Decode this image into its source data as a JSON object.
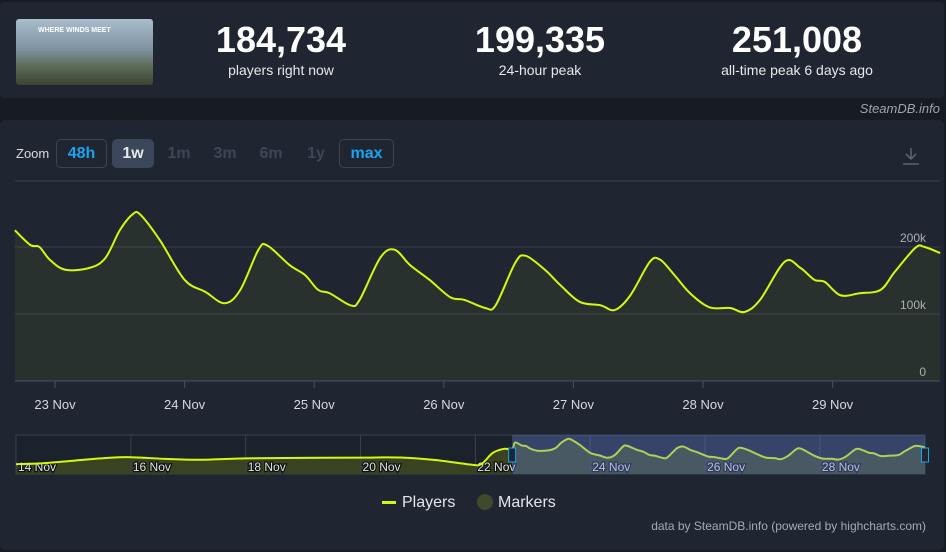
{
  "game": {
    "thumbnail_text": "WHERE WINDS MEET"
  },
  "stats": [
    {
      "value": "184,734",
      "label": "players right now"
    },
    {
      "value": "199,335",
      "label": "24-hour peak"
    },
    {
      "value": "251,008",
      "label": "all-time peak 6 days ago"
    }
  ],
  "brand": "SteamDB.info",
  "zoom": {
    "label": "Zoom",
    "buttons": [
      "48h",
      "1w",
      "1m",
      "3m",
      "6m",
      "1y",
      "max"
    ],
    "active": "1w"
  },
  "legend": {
    "players": "Players",
    "markers": "Markers"
  },
  "credit": "data by SteamDB.info (powered by highcharts.com)",
  "colors": {
    "line": "#d4f90e",
    "accent": "#1aa3f0",
    "marker": "#3f4a2a"
  },
  "chart_data": {
    "type": "line",
    "title": "",
    "xlabel": "",
    "ylabel": "Players",
    "x_unit": "day of November",
    "ylim": [
      0,
      250000
    ],
    "yticks": [
      {
        "v": 0,
        "label": "0"
      },
      {
        "v": 100000,
        "label": "100k"
      },
      {
        "v": 200000,
        "label": "200k"
      }
    ],
    "xticks": [
      {
        "v": 23,
        "label": "23 Nov"
      },
      {
        "v": 24,
        "label": "24 Nov"
      },
      {
        "v": 25,
        "label": "25 Nov"
      },
      {
        "v": 26,
        "label": "26 Nov"
      },
      {
        "v": 27,
        "label": "27 Nov"
      },
      {
        "v": 28,
        "label": "28 Nov"
      },
      {
        "v": 29,
        "label": "29 Nov"
      }
    ],
    "xlim": [
      22.69,
      29.83
    ],
    "series": [
      {
        "name": "Players",
        "points": [
          [
            22.69,
            225
          ],
          [
            22.81,
            203
          ],
          [
            22.88,
            200
          ],
          [
            22.96,
            181
          ],
          [
            23.08,
            166
          ],
          [
            23.27,
            169
          ],
          [
            23.39,
            184
          ],
          [
            23.5,
            225
          ],
          [
            23.6,
            249
          ],
          [
            23.66,
            248
          ],
          [
            23.81,
            210
          ],
          [
            24.0,
            151
          ],
          [
            24.16,
            133
          ],
          [
            24.31,
            116
          ],
          [
            24.43,
            136
          ],
          [
            24.57,
            196
          ],
          [
            24.64,
            202
          ],
          [
            24.81,
            173
          ],
          [
            24.93,
            158
          ],
          [
            25.03,
            136
          ],
          [
            25.12,
            131
          ],
          [
            25.28,
            113
          ],
          [
            25.35,
            121
          ],
          [
            25.51,
            184
          ],
          [
            25.62,
            196
          ],
          [
            25.74,
            173
          ],
          [
            25.89,
            151
          ],
          [
            26.05,
            125
          ],
          [
            26.16,
            121
          ],
          [
            26.32,
            109
          ],
          [
            26.4,
            113
          ],
          [
            26.55,
            176
          ],
          [
            26.63,
            187
          ],
          [
            26.78,
            166
          ],
          [
            26.9,
            143
          ],
          [
            27.05,
            118
          ],
          [
            27.21,
            113
          ],
          [
            27.32,
            106
          ],
          [
            27.44,
            128
          ],
          [
            27.59,
            178
          ],
          [
            27.67,
            181
          ],
          [
            27.78,
            158
          ],
          [
            27.9,
            131
          ],
          [
            28.05,
            110
          ],
          [
            28.21,
            109
          ],
          [
            28.32,
            103
          ],
          [
            28.44,
            121
          ],
          [
            28.63,
            178
          ],
          [
            28.75,
            169
          ],
          [
            28.86,
            151
          ],
          [
            28.94,
            148
          ],
          [
            29.06,
            128
          ],
          [
            29.21,
            131
          ],
          [
            29.37,
            136
          ],
          [
            29.48,
            163
          ],
          [
            29.64,
            199
          ],
          [
            29.71,
            200
          ],
          [
            29.83,
            191
          ]
        ]
      }
    ],
    "navigator": {
      "xticks": [
        {
          "v": 14,
          "label": "14 Nov"
        },
        {
          "v": 16,
          "label": "16 Nov"
        },
        {
          "v": 18,
          "label": "18 Nov"
        },
        {
          "v": 20,
          "label": "20 Nov"
        },
        {
          "v": 22,
          "label": "22 Nov"
        },
        {
          "v": 24,
          "label": "24 Nov"
        },
        {
          "v": 26,
          "label": "26 Nov"
        },
        {
          "v": 28,
          "label": "28 Nov"
        }
      ],
      "xlim": [
        14,
        29.83
      ],
      "selection": [
        22.64,
        29.83
      ],
      "early_points": [
        [
          14,
          70
        ],
        [
          14.5,
          78
        ],
        [
          15,
          95
        ],
        [
          15.6,
          115
        ],
        [
          16,
          120
        ],
        [
          16.6,
          108
        ],
        [
          17.2,
          102
        ],
        [
          18,
          112
        ],
        [
          19,
          115
        ],
        [
          20,
          117
        ],
        [
          20.7,
          118
        ],
        [
          21.3,
          100
        ],
        [
          21.9,
          68
        ],
        [
          22.1,
          70
        ],
        [
          22.3,
          150
        ],
        [
          22.5,
          180
        ],
        [
          22.64,
          175
        ]
      ]
    }
  }
}
